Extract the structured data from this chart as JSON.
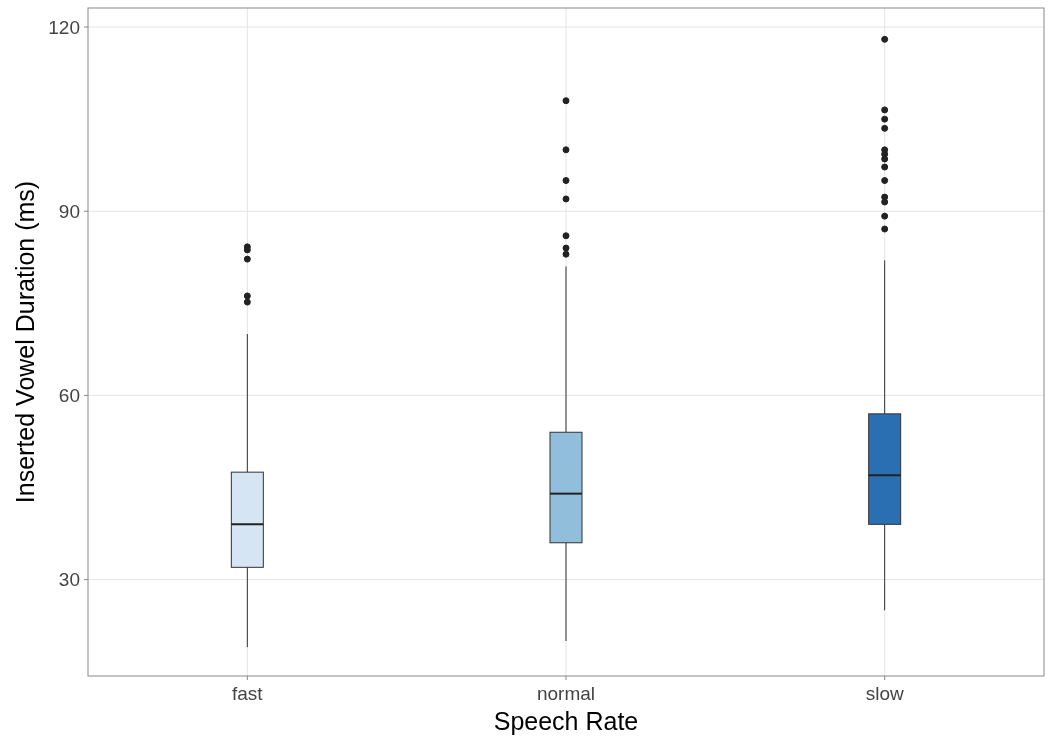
{
  "chart_data": {
    "type": "box",
    "xlabel": "Speech Rate",
    "ylabel": "Inserted Vowel Duration (ms)",
    "categories": [
      "fast",
      "normal",
      "slow"
    ],
    "colors": [
      "#d6e5f4",
      "#90bedb",
      "#2a6fb2"
    ],
    "boxes": [
      {
        "low": 19,
        "q1": 32,
        "median": 39,
        "q3": 47.5,
        "high": 70,
        "outliers": [
          84.2,
          83.7,
          82.2,
          76.2,
          75.2
        ]
      },
      {
        "low": 20,
        "q1": 36,
        "median": 44,
        "q3": 54,
        "high": 81,
        "outliers": [
          108,
          100,
          95,
          92,
          86,
          84,
          83
        ]
      },
      {
        "low": 25,
        "q1": 39,
        "median": 47,
        "q3": 57,
        "high": 82,
        "outliers": [
          118,
          106.5,
          105,
          103.5,
          100,
          99.3,
          98.5,
          97.2,
          95,
          92.3,
          91.5,
          89.2,
          87.1
        ]
      }
    ],
    "ylim": [
      14.3,
      123.1
    ],
    "yticks": [
      30,
      60,
      90,
      120
    ],
    "grid": true
  }
}
